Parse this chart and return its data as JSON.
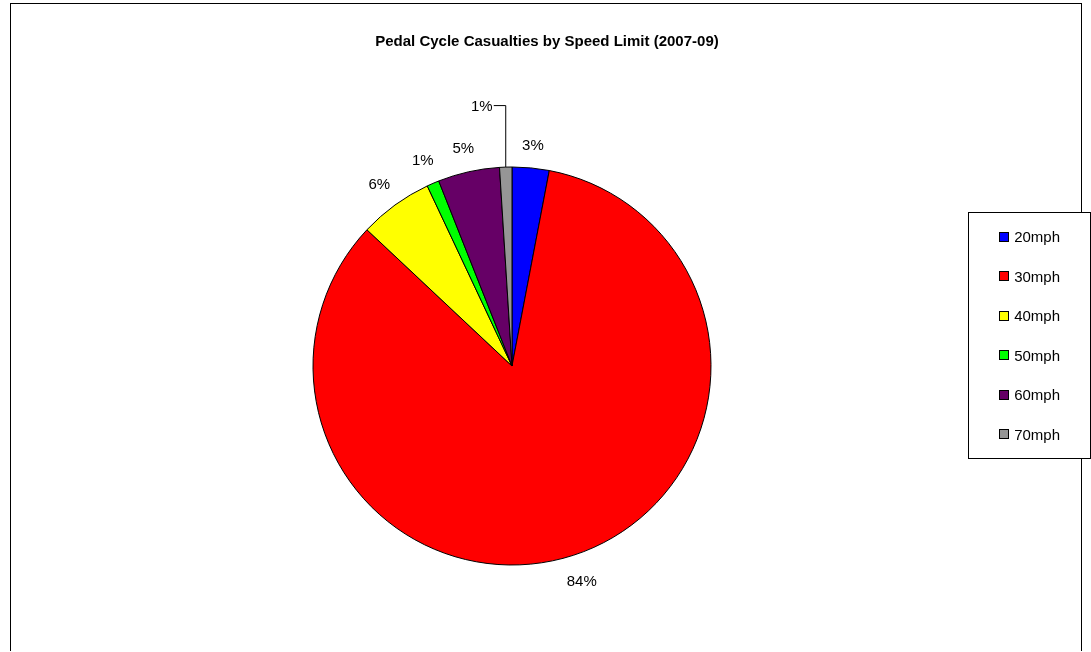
{
  "chart_data": {
    "type": "pie",
    "title": "Pedal Cycle Casualties by Speed Limit (2007-09)",
    "categories": [
      "20mph",
      "30mph",
      "40mph",
      "50mph",
      "60mph",
      "70mph"
    ],
    "values": [
      3,
      84,
      6,
      1,
      5,
      1
    ],
    "colors": [
      "#0000ff",
      "#ff0000",
      "#ffff00",
      "#00ff00",
      "#660066",
      "#969696"
    ],
    "value_labels": [
      "3%",
      "84%",
      "6%",
      "1%",
      "5%",
      "1%"
    ],
    "legend": "right"
  }
}
